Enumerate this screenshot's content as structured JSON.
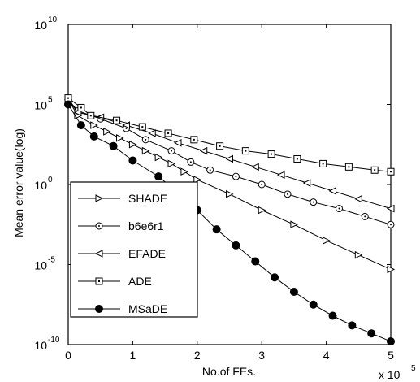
{
  "chart_data": {
    "type": "line",
    "xlabel": "No.of FEs.",
    "ylabel": "Mean error value(log)",
    "x_multiplier": "x 10",
    "x_multiplier_exp": "5",
    "xlim": [
      0,
      5
    ],
    "ylim_log10": [
      -10,
      10
    ],
    "yscale": "log",
    "xticks": [
      "0",
      "1",
      "2",
      "3",
      "4",
      "5"
    ],
    "yticks": [
      {
        "base": "10",
        "exp": "10",
        "value": 10
      },
      {
        "base": "10",
        "exp": "5",
        "value": 5
      },
      {
        "base": "10",
        "exp": "0",
        "value": 0
      },
      {
        "base": "10",
        "exp": "-5",
        "value": -5
      },
      {
        "base": "10",
        "exp": "-10",
        "value": -10
      }
    ],
    "grid": false,
    "legend_position": "bottom-left",
    "series": [
      {
        "name": "SHADE",
        "marker": "triangle-right",
        "x": [
          0,
          0.15,
          0.4,
          0.6,
          0.8,
          1,
          1.2,
          1.4,
          1.6,
          1.8,
          2,
          2.5,
          3,
          3.5,
          4,
          4.5,
          5
        ],
        "y_log10": [
          5.3,
          4.3,
          3.7,
          3.3,
          2.9,
          2.5,
          2.1,
          1.7,
          1.3,
          0.8,
          0.3,
          -0.6,
          -1.6,
          -2.5,
          -3.5,
          -4.4,
          -5.3
        ]
      },
      {
        "name": "b6e6r1",
        "marker": "circle-open",
        "x": [
          0,
          0.15,
          0.5,
          0.9,
          1.2,
          1.6,
          1.9,
          2.2,
          2.6,
          3.0,
          3.4,
          3.8,
          4.2,
          4.6,
          5
        ],
        "y_log10": [
          5.3,
          4.6,
          4.1,
          3.5,
          2.8,
          2.1,
          1.4,
          0.9,
          0.5,
          0.0,
          -0.6,
          -1.1,
          -1.5,
          -2.0,
          -2.5
        ]
      },
      {
        "name": "EFADE",
        "marker": "triangle-left",
        "x": [
          0,
          0.15,
          0.5,
          0.9,
          1.3,
          1.7,
          2.1,
          2.5,
          2.9,
          3.3,
          3.7,
          4.1,
          4.5,
          5
        ],
        "y_log10": [
          5.3,
          4.5,
          4.2,
          3.7,
          3.2,
          2.6,
          2.1,
          1.6,
          1.1,
          0.6,
          0.1,
          -0.4,
          -0.9,
          -1.5
        ]
      },
      {
        "name": "ADE",
        "marker": "square-open",
        "x": [
          0,
          0.2,
          0.35,
          0.75,
          1.15,
          1.55,
          1.95,
          2.35,
          2.75,
          3.15,
          3.55,
          3.95,
          4.35,
          4.75,
          5
        ],
        "y_log10": [
          5.4,
          4.8,
          4.3,
          4.0,
          3.6,
          3.2,
          2.8,
          2.4,
          2.1,
          1.9,
          1.6,
          1.3,
          1.1,
          0.9,
          0.8
        ]
      },
      {
        "name": "MSaDE",
        "marker": "circle-filled",
        "x": [
          0,
          0.2,
          0.4,
          0.7,
          1.0,
          1.4,
          1.7,
          2.0,
          2.3,
          2.6,
          2.9,
          3.2,
          3.5,
          3.8,
          4.1,
          4.4,
          4.7,
          5
        ],
        "y_log10": [
          5.0,
          3.7,
          3.0,
          2.4,
          1.5,
          0.5,
          -0.5,
          -1.6,
          -2.8,
          -3.8,
          -4.8,
          -5.8,
          -6.7,
          -7.5,
          -8.2,
          -8.8,
          -9.3,
          -9.8
        ]
      }
    ]
  }
}
